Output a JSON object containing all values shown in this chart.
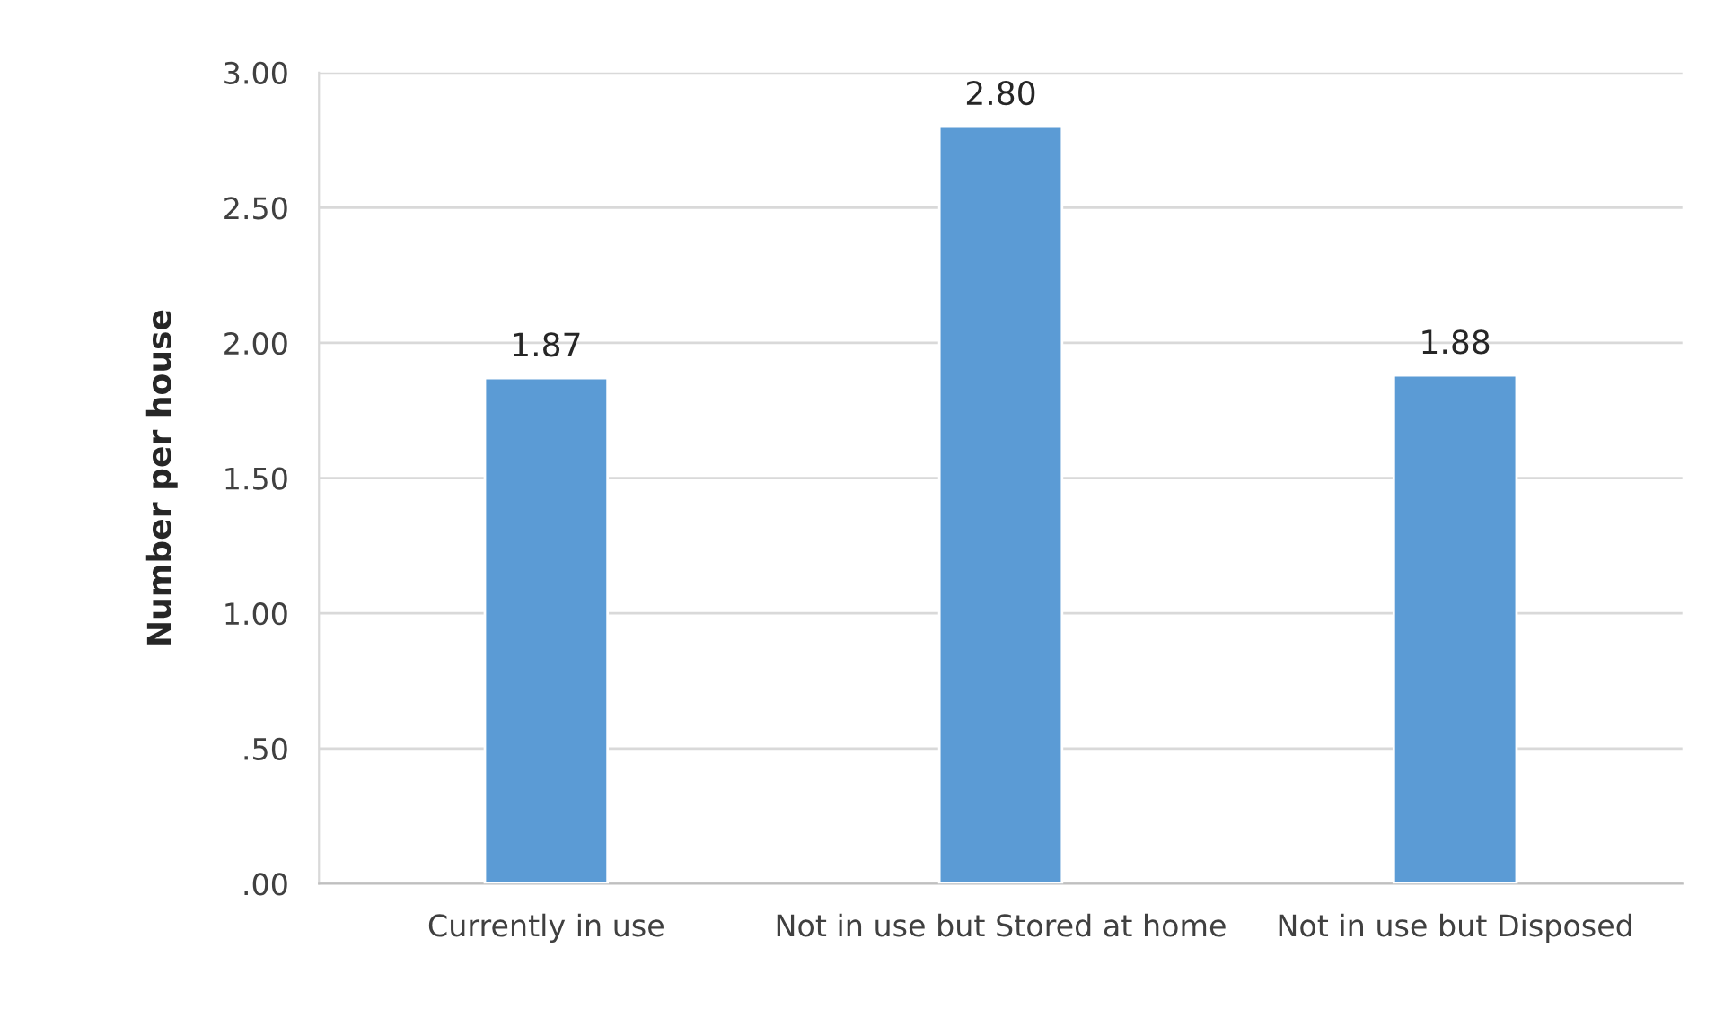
{
  "chart_data": {
    "type": "bar",
    "ylabel": "Number per house",
    "categories": [
      "Currently in use",
      "Not in use but Stored at home",
      "Not in use but Disposed"
    ],
    "values": [
      1.87,
      2.8,
      1.88
    ],
    "value_labels": [
      "1.87",
      "2.80",
      "1.88"
    ],
    "color": "#5b9bd5",
    "ylim": [
      0,
      3
    ],
    "yticks": [
      {
        "value": 0,
        "label": ".00"
      },
      {
        "value": 0.5,
        "label": ".50"
      },
      {
        "value": 1,
        "label": "1.00"
      },
      {
        "value": 1.5,
        "label": "1.50"
      },
      {
        "value": 2,
        "label": "2.00"
      },
      {
        "value": 2.5,
        "label": "2.50"
      },
      {
        "value": 3,
        "label": "3.00"
      }
    ],
    "grid": "y",
    "legend": false
  }
}
